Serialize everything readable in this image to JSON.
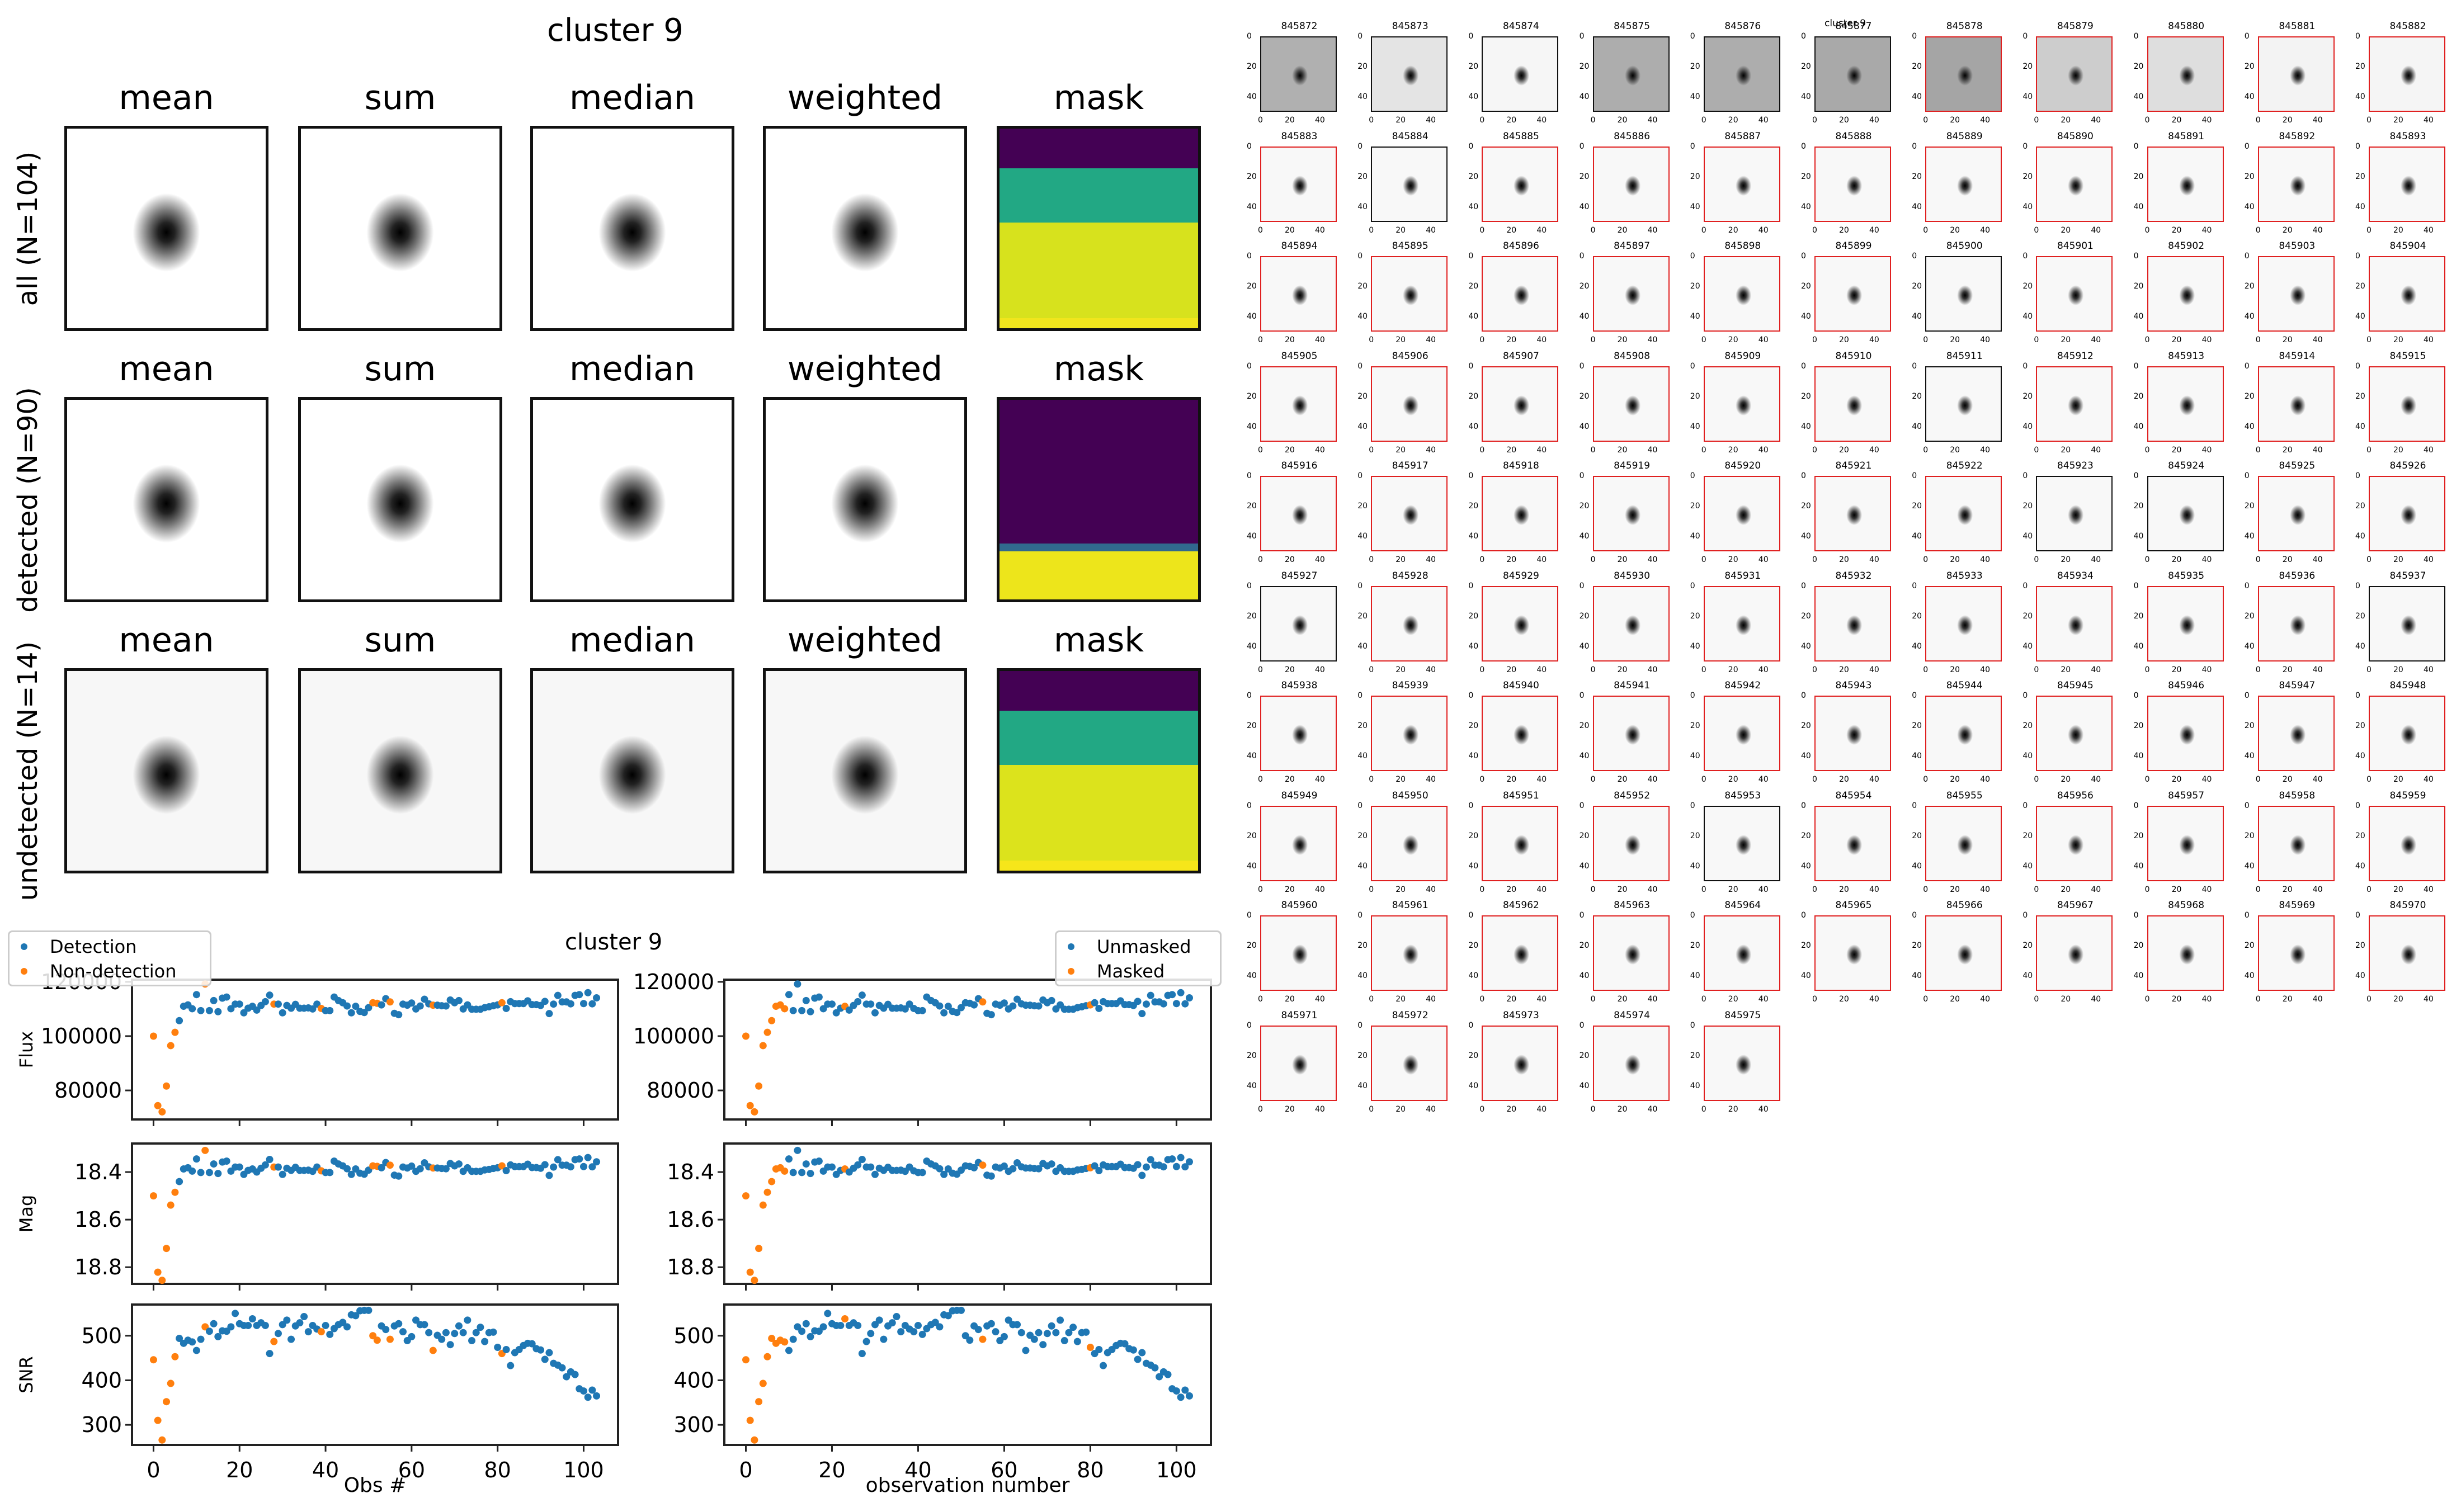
{
  "stacks": {
    "title": "cluster 9",
    "column_titles": [
      "mean",
      "sum",
      "median",
      "weighted",
      "mask"
    ],
    "rows": [
      {
        "label": "all (N=104)",
        "background_gray": "#ffffff",
        "mask_bands": [
          {
            "from": 0,
            "to": 0.2,
            "color": "#440154"
          },
          {
            "from": 0.2,
            "to": 0.47,
            "color": "#22a884"
          },
          {
            "from": 0.47,
            "to": 0.95,
            "color": "#d7e21d"
          },
          {
            "from": 0.95,
            "to": 1.0,
            "color": "#f0e51d"
          }
        ]
      },
      {
        "label": "detected (N=90)",
        "background_gray": "#ffffff",
        "mask_bands": [
          {
            "from": 0,
            "to": 0.72,
            "color": "#440154"
          },
          {
            "from": 0.72,
            "to": 0.76,
            "color": "#31688e"
          },
          {
            "from": 0.76,
            "to": 1.0,
            "color": "#ede51b"
          }
        ]
      },
      {
        "label": "undetected (N=14)",
        "background_gray": "#f7f7f7",
        "mask_bands": [
          {
            "from": 0,
            "to": 0.2,
            "color": "#440154"
          },
          {
            "from": 0.2,
            "to": 0.47,
            "color": "#22a884"
          },
          {
            "from": 0.47,
            "to": 0.95,
            "color": "#dce31c"
          },
          {
            "from": 0.95,
            "to": 1.0,
            "color": "#f6e61a"
          }
        ]
      }
    ]
  },
  "thumbnails": {
    "title": "cluster 9",
    "x_ticks": [
      "0",
      "20",
      "40"
    ],
    "y_ticks": [
      "0",
      "20",
      "40"
    ],
    "undetected_border_color": "#111111",
    "detected_border_color": "#e02020",
    "items": [
      {
        "id": "845872",
        "detected": false,
        "bg": "#b0b0b0"
      },
      {
        "id": "845873",
        "detected": false,
        "bg": "#e4e4e4"
      },
      {
        "id": "845874",
        "detected": false,
        "bg": "#f6f6f6"
      },
      {
        "id": "845875",
        "detected": false,
        "bg": "#adadad"
      },
      {
        "id": "845876",
        "detected": false,
        "bg": "#adadad"
      },
      {
        "id": "845877",
        "detected": false,
        "bg": "#a9a9a9"
      },
      {
        "id": "845878",
        "detected": true,
        "bg": "#a5a5a5"
      },
      {
        "id": "845879",
        "detected": true,
        "bg": "#cdcdcd"
      },
      {
        "id": "845880",
        "detected": true,
        "bg": "#dedede"
      },
      {
        "id": "845881",
        "detected": true,
        "bg": "#f3f3f3"
      },
      {
        "id": "845882",
        "detected": true,
        "bg": "#f5f5f5"
      },
      {
        "id": "845883",
        "detected": true
      },
      {
        "id": "845884",
        "detected": false
      },
      {
        "id": "845885",
        "detected": true
      },
      {
        "id": "845886",
        "detected": true
      },
      {
        "id": "845887",
        "detected": true
      },
      {
        "id": "845888",
        "detected": true
      },
      {
        "id": "845889",
        "detected": true
      },
      {
        "id": "845890",
        "detected": true
      },
      {
        "id": "845891",
        "detected": true
      },
      {
        "id": "845892",
        "detected": true
      },
      {
        "id": "845893",
        "detected": true
      },
      {
        "id": "845894",
        "detected": true
      },
      {
        "id": "845895",
        "detected": true
      },
      {
        "id": "845896",
        "detected": true
      },
      {
        "id": "845897",
        "detected": true
      },
      {
        "id": "845898",
        "detected": true
      },
      {
        "id": "845899",
        "detected": true
      },
      {
        "id": "845900",
        "detected": false
      },
      {
        "id": "845901",
        "detected": true
      },
      {
        "id": "845902",
        "detected": true
      },
      {
        "id": "845903",
        "detected": true
      },
      {
        "id": "845904",
        "detected": true
      },
      {
        "id": "845905",
        "detected": true
      },
      {
        "id": "845906",
        "detected": true
      },
      {
        "id": "845907",
        "detected": true
      },
      {
        "id": "845908",
        "detected": true
      },
      {
        "id": "845909",
        "detected": true
      },
      {
        "id": "845910",
        "detected": true
      },
      {
        "id": "845911",
        "detected": false
      },
      {
        "id": "845912",
        "detected": true
      },
      {
        "id": "845913",
        "detected": true
      },
      {
        "id": "845914",
        "detected": true
      },
      {
        "id": "845915",
        "detected": true
      },
      {
        "id": "845916",
        "detected": true
      },
      {
        "id": "845917",
        "detected": true
      },
      {
        "id": "845918",
        "detected": true
      },
      {
        "id": "845919",
        "detected": true
      },
      {
        "id": "845920",
        "detected": true
      },
      {
        "id": "845921",
        "detected": true
      },
      {
        "id": "845922",
        "detected": true
      },
      {
        "id": "845923",
        "detected": false
      },
      {
        "id": "845924",
        "detected": false
      },
      {
        "id": "845925",
        "detected": true
      },
      {
        "id": "845926",
        "detected": true
      },
      {
        "id": "845927",
        "detected": false
      },
      {
        "id": "845928",
        "detected": true
      },
      {
        "id": "845929",
        "detected": true
      },
      {
        "id": "845930",
        "detected": true
      },
      {
        "id": "845931",
        "detected": true
      },
      {
        "id": "845932",
        "detected": true
      },
      {
        "id": "845933",
        "detected": true
      },
      {
        "id": "845934",
        "detected": true
      },
      {
        "id": "845935",
        "detected": true
      },
      {
        "id": "845936",
        "detected": true
      },
      {
        "id": "845937",
        "detected": false
      },
      {
        "id": "845938",
        "detected": true
      },
      {
        "id": "845939",
        "detected": true
      },
      {
        "id": "845940",
        "detected": true
      },
      {
        "id": "845941",
        "detected": true
      },
      {
        "id": "845942",
        "detected": true
      },
      {
        "id": "845943",
        "detected": true
      },
      {
        "id": "845944",
        "detected": true
      },
      {
        "id": "845945",
        "detected": true
      },
      {
        "id": "845946",
        "detected": true
      },
      {
        "id": "845947",
        "detected": true
      },
      {
        "id": "845948",
        "detected": true
      },
      {
        "id": "845949",
        "detected": true
      },
      {
        "id": "845950",
        "detected": true
      },
      {
        "id": "845951",
        "detected": true
      },
      {
        "id": "845952",
        "detected": true
      },
      {
        "id": "845953",
        "detected": false
      },
      {
        "id": "845954",
        "detected": true
      },
      {
        "id": "845955",
        "detected": true
      },
      {
        "id": "845956",
        "detected": true
      },
      {
        "id": "845957",
        "detected": true
      },
      {
        "id": "845958",
        "detected": true
      },
      {
        "id": "845959",
        "detected": true
      },
      {
        "id": "845960",
        "detected": true
      },
      {
        "id": "845961",
        "detected": true
      },
      {
        "id": "845962",
        "detected": true
      },
      {
        "id": "845963",
        "detected": true
      },
      {
        "id": "845964",
        "detected": true
      },
      {
        "id": "845965",
        "detected": true
      },
      {
        "id": "845966",
        "detected": true
      },
      {
        "id": "845967",
        "detected": true
      },
      {
        "id": "845968",
        "detected": true
      },
      {
        "id": "845969",
        "detected": true
      },
      {
        "id": "845970",
        "detected": true
      },
      {
        "id": "845971",
        "detected": true
      },
      {
        "id": "845972",
        "detected": true
      },
      {
        "id": "845973",
        "detected": true
      },
      {
        "id": "845974",
        "detected": true
      },
      {
        "id": "845975",
        "detected": true
      }
    ]
  },
  "chart_data": {
    "type": "scatter",
    "title": "cluster 9",
    "colors": {
      "blue": "#1f77b4",
      "orange": "#ff7f0e"
    },
    "x": "0..103 (observation index)",
    "xlim": [
      -5,
      108
    ],
    "x_ticks": [
      0,
      20,
      40,
      60,
      80,
      100
    ],
    "columns": [
      {
        "xlabel": "Obs #",
        "legend": {
          "placement": "upper-left",
          "entries": [
            "Detection",
            "Non-detection"
          ]
        },
        "orange_indices": [
          0,
          1,
          2,
          3,
          4,
          5,
          12,
          28,
          39,
          51,
          52,
          55,
          65,
          81
        ]
      },
      {
        "xlabel": "observation number",
        "legend": {
          "placement": "upper-right",
          "entries": [
            "Unmasked",
            "Masked"
          ]
        },
        "orange_indices": [
          0,
          1,
          2,
          3,
          4,
          5,
          6,
          7,
          8,
          9,
          23,
          55,
          80
        ]
      }
    ],
    "panels": [
      {
        "ylabel": "Flux",
        "ylim": [
          69300,
          120800
        ],
        "y_ticks": [
          80000,
          100000,
          120000
        ],
        "invert": false,
        "values": [
          100000,
          74400,
          72100,
          81600,
          96500,
          101400,
          105700,
          111000,
          111500,
          110100,
          115300,
          109400,
          119200,
          109400,
          113100,
          109000,
          114000,
          114400,
          110100,
          111800,
          111800,
          108600,
          110300,
          111000,
          109600,
          111300,
          112700,
          115100,
          111800,
          111800,
          108600,
          111300,
          110300,
          111700,
          110300,
          110300,
          110400,
          110000,
          111800,
          110200,
          109400,
          109400,
          114400,
          113100,
          112300,
          111100,
          108600,
          111000,
          109100,
          108700,
          110500,
          112300,
          112100,
          111500,
          113800,
          112600,
          108400,
          107900,
          111800,
          111400,
          112200,
          110000,
          111100,
          113600,
          111900,
          111400,
          111400,
          111200,
          111100,
          113300,
          112300,
          113100,
          110000,
          111500,
          109900,
          109900,
          109900,
          110500,
          110800,
          111200,
          111500,
          112300,
          110200,
          112700,
          112000,
          112000,
          112000,
          113000,
          111600,
          111600,
          111300,
          112800,
          108300,
          111800,
          115000,
          112600,
          112600,
          111900,
          115000,
          115300,
          112000,
          116000,
          111900,
          114100
        ]
      },
      {
        "ylabel": "Mag",
        "ylim": [
          18.87,
          18.28
        ],
        "y_ticks": [
          18.4,
          18.6,
          18.8
        ],
        "invert": true,
        "values": [
          18.5,
          18.821,
          18.855,
          18.721,
          18.539,
          18.485,
          18.44,
          18.387,
          18.382,
          18.396,
          18.345,
          18.402,
          18.309,
          18.402,
          18.366,
          18.406,
          18.358,
          18.354,
          18.396,
          18.379,
          18.379,
          18.41,
          18.393,
          18.387,
          18.4,
          18.384,
          18.37,
          18.347,
          18.379,
          18.379,
          18.41,
          18.384,
          18.393,
          18.38,
          18.393,
          18.393,
          18.392,
          18.397,
          18.379,
          18.395,
          18.402,
          18.402,
          18.354,
          18.366,
          18.374,
          18.386,
          18.41,
          18.387,
          18.405,
          18.409,
          18.392,
          18.374,
          18.376,
          18.382,
          18.36,
          18.371,
          18.413,
          18.417,
          18.379,
          18.383,
          18.375,
          18.397,
          18.386,
          18.361,
          18.378,
          18.383,
          18.383,
          18.385,
          18.386,
          18.364,
          18.374,
          18.366,
          18.397,
          18.382,
          18.397,
          18.397,
          18.397,
          18.391,
          18.389,
          18.385,
          18.382,
          18.374,
          18.394,
          18.37,
          18.377,
          18.377,
          18.377,
          18.367,
          18.381,
          18.381,
          18.384,
          18.369,
          18.414,
          18.379,
          18.348,
          18.371,
          18.371,
          18.378,
          18.348,
          18.345,
          18.377,
          18.339,
          18.378,
          18.357
        ]
      },
      {
        "ylabel": "SNR",
        "ylim": [
          255,
          570
        ],
        "y_ticks": [
          300,
          400,
          500
        ],
        "invert": false,
        "values": [
          446,
          310,
          266,
          352,
          393,
          453,
          494,
          483,
          490,
          486,
          467,
          492,
          520,
          510,
          527,
          498,
          511,
          510,
          520,
          550,
          527,
          523,
          523,
          538,
          523,
          529,
          523,
          460,
          487,
          505,
          525,
          535,
          492,
          522,
          529,
          543,
          509,
          523,
          515,
          509,
          523,
          503,
          516,
          525,
          530,
          520,
          547,
          545,
          556,
          557,
          557,
          500,
          490,
          522,
          514,
          492,
          522,
          527,
          509,
          489,
          498,
          535,
          525,
          525,
          507,
          467,
          501,
          492,
          507,
          480,
          505,
          522,
          507,
          535,
          489,
          507,
          519,
          487,
          507,
          508,
          474,
          460,
          469,
          433,
          462,
          469,
          478,
          483,
          482,
          471,
          468,
          447,
          462,
          438,
          434,
          428,
          408,
          419,
          413,
          381,
          376,
          362,
          378,
          365
        ]
      }
    ]
  }
}
